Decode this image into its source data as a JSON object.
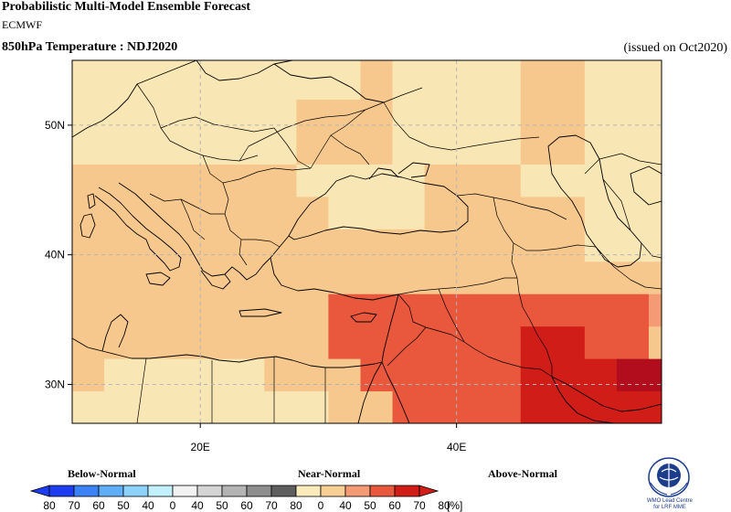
{
  "header": {
    "title": "Probabilistic Multi-Model Ensemble Forecast",
    "center": "ECMWF",
    "variable": "850hPa Temperature : NDJ2020",
    "issued": "(issued on Oct2020)"
  },
  "map": {
    "lon_range": [
      10,
      56
    ],
    "lat_range": [
      27,
      55
    ],
    "lat_labels": [
      "50N",
      "40N",
      "30N"
    ],
    "lat_values": [
      50,
      40,
      30
    ],
    "lon_labels": [
      "20E",
      "40E"
    ],
    "lon_values": [
      20,
      40
    ],
    "cell_size_deg": 2.5,
    "colors": {
      "an40": "#f8e6b4",
      "an50": "#f6c88e",
      "an60": "#f49a74",
      "an70": "#e9573c",
      "an80": "#d11d18",
      "an90": "#b10d1c",
      "coast": "#000000",
      "grid": "#b4b4b4"
    }
  },
  "legend": {
    "categories": [
      "Below-Normal",
      "Near-Normal",
      "Above-Normal"
    ],
    "tick_labels": [
      "80",
      "70",
      "60",
      "50",
      "40",
      "0",
      "40",
      "50",
      "60",
      "70",
      "80",
      "0",
      "40",
      "50",
      "60",
      "70",
      "80"
    ],
    "unit": "[%]",
    "below_colors": [
      "#1e3cf0",
      "#3b82f6",
      "#5eaef8",
      "#8cd2fb",
      "#c2f0fd"
    ],
    "near_colors": [
      "#f2f2f2",
      "#d4d4d4",
      "#b4b4b4",
      "#8e8e8e",
      "#5e5e5e"
    ],
    "above_colors": [
      "#fbeaba",
      "#f8cf95",
      "#f49a74",
      "#e9573c",
      "#d11d18"
    ]
  },
  "logo": {
    "caption": "WMO Lead Centre for LRF MME"
  }
}
